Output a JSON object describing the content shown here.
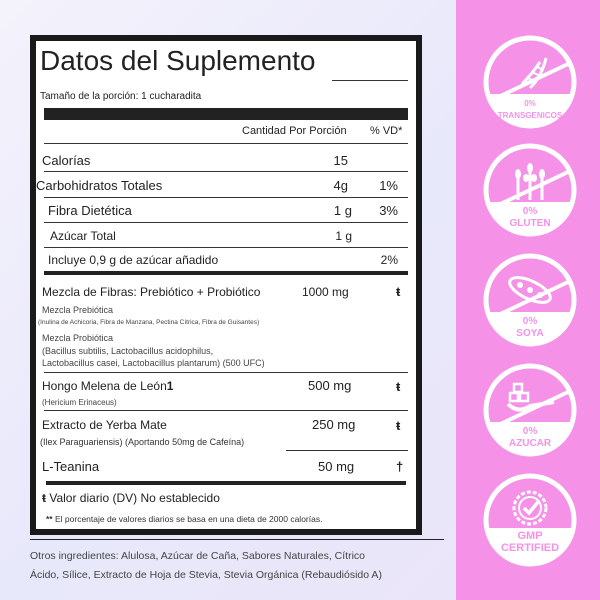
{
  "label": {
    "title": "Datos del Suplemento",
    "serving": "Tamaño de la porción: 1 cucharadita",
    "col_amount": "Cantidad Por Porción",
    "col_dv": "% VD*",
    "rows": [
      {
        "name": "Calorías",
        "amount": "15",
        "dv": ""
      },
      {
        "name": "Carbohidratos Totales",
        "amount": "4g",
        "dv": "1%"
      },
      {
        "name": "Fibra Dietética",
        "amount": "1 g",
        "dv": "3%"
      },
      {
        "name": "Azúcar Total",
        "amount": "1 g",
        "dv": ""
      },
      {
        "name": "Incluye 0,9 g de azúcar añadido",
        "amount": "",
        "dv": "2%"
      }
    ],
    "blend": {
      "name": "Mezcla de Fibras: Prebiótico + Probiótico",
      "amount": "1000 mg",
      "dv": "ŧ",
      "pre_title": "Mezcla Prebiótica",
      "pre_detail": "(Inulina de Achicoria, Fibra de Manzana, Pectina Cítrica, Fibra de Guisantes)",
      "pro_title": "Mezcla Probiótica",
      "pro_line1": "(Bacillus subtilis, Lactobacillus acidophilus,",
      "pro_line2": "Lactobacillus casei, Lactobacillus plantarum) (500 UFC)"
    },
    "hongo": {
      "name": "Hongo Melena de León",
      "mark": "1",
      "amount": "500 mg",
      "dv": "ŧ",
      "detail": "(Hericium Erinaceus)"
    },
    "yerba": {
      "name": "Extracto de Yerba Mate",
      "amount": "250 mg",
      "dv": "ŧ",
      "detail": "(Ilex Paraguariensis) (Aportando 50mg de Cafeína)"
    },
    "teanina": {
      "name": "L-Teanina",
      "amount": "50 mg",
      "dv": "†"
    },
    "foot1_mark": "ŧ",
    "foot1": "Valor diario (DV) No establecido",
    "foot2_mark": "**",
    "foot2": "El porcentaje de valores diarios se basa en una dieta de 2000 calorías."
  },
  "other_line1": "Otros ingredientes: Alulosa, Azúcar de Caña, Sabores Naturales, Cítrico",
  "other_line2": "Ácido, Sílice, Extracto de Hoja de Stevia, Stevia Orgánica (Rebaudiósido A)",
  "badges": [
    {
      "icon": "dna-icon",
      "l1": "0%",
      "l2": "TRANSGENICOS"
    },
    {
      "icon": "wheat-icon",
      "l1": "0%",
      "l2": "GLUTEN"
    },
    {
      "icon": "soybean-icon",
      "l1": "0%",
      "l2": "SOYA"
    },
    {
      "icon": "sugar-spoon-icon",
      "l1": "0%",
      "l2": "AZUCAR"
    },
    {
      "icon": "check-seal-icon",
      "l1": "GMP",
      "l2": "CERTIFIED"
    }
  ],
  "colors": {
    "pink": "#f592e8",
    "border": "#1a1a1a"
  }
}
